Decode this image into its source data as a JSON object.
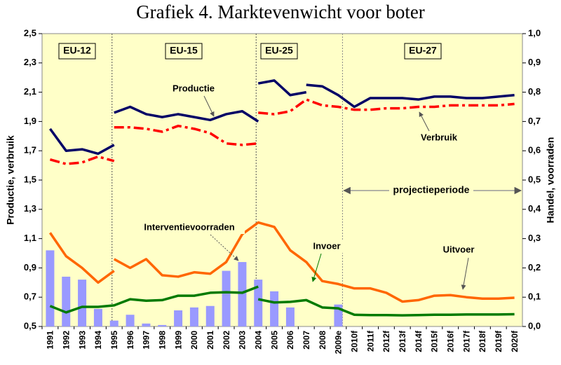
{
  "chart_data": {
    "type": "line",
    "title": "Grafiek 4. Marktevenwicht voor boter",
    "ylabel": "Productie, verbruik",
    "y2label": "Handel, voorraden",
    "categories": [
      "1991",
      "1992",
      "1993",
      "1994",
      "1995",
      "1996",
      "1997",
      "1998",
      "1999",
      "2000",
      "2001",
      "2002",
      "2003",
      "2004",
      "2005",
      "2006",
      "2007",
      "2008",
      "2009e",
      "2010f",
      "2011f",
      "2012f",
      "2013f",
      "2014f",
      "2015f",
      "2016f",
      "2017f",
      "2018f",
      "2019f",
      "2020f"
    ],
    "ylim": [
      0.5,
      2.5
    ],
    "yticks": [
      {
        "value": 0.5,
        "label": "0,5"
      },
      {
        "value": 0.7,
        "label": "0,7"
      },
      {
        "value": 0.9,
        "label": "0,9"
      },
      {
        "value": 1.1,
        "label": "1,1"
      },
      {
        "value": 1.3,
        "label": "1,3"
      },
      {
        "value": 1.5,
        "label": "1,5"
      },
      {
        "value": 1.7,
        "label": "1,7"
      },
      {
        "value": 1.9,
        "label": "1,9"
      },
      {
        "value": 2.1,
        "label": "2,1"
      },
      {
        "value": 2.3,
        "label": "2,3"
      },
      {
        "value": 2.5,
        "label": "2,5"
      }
    ],
    "y2lim": [
      0,
      1
    ],
    "y2ticks": [
      {
        "value": 0,
        "label": "0,0"
      },
      {
        "value": 0.1,
        "label": "0,1"
      },
      {
        "value": 0.2,
        "label": "0,2"
      },
      {
        "value": 0.3,
        "label": "0,3"
      },
      {
        "value": 0.4,
        "label": "0,4"
      },
      {
        "value": 0.5,
        "label": "0,5"
      },
      {
        "value": 0.6,
        "label": "0,6"
      },
      {
        "value": 0.7,
        "label": "0,7"
      },
      {
        "value": 0.8,
        "label": "0,8"
      },
      {
        "value": 0.9,
        "label": "0,9"
      },
      {
        "value": 1,
        "label": "1,0"
      }
    ],
    "periods": [
      "EU-12",
      "EU-15",
      "EU-25",
      "EU-27"
    ],
    "projection_label": "projectieperiode",
    "series": [
      {
        "name": "Productie",
        "type": "line",
        "color": "#000066",
        "axis": "y",
        "dash": "solid",
        "segments": [
          [
            1.85,
            1.7,
            1.71,
            1.68,
            1.74,
            null,
            null,
            null,
            null,
            null,
            null,
            null,
            null,
            null,
            null,
            null,
            null,
            null,
            null,
            null,
            null,
            null,
            null,
            null,
            null,
            null,
            null,
            null,
            null,
            null
          ],
          [
            null,
            null,
            null,
            null,
            1.96,
            2.0,
            1.95,
            1.93,
            1.95,
            1.93,
            1.91,
            1.95,
            1.97,
            1.9,
            null,
            null,
            null,
            null,
            null,
            null,
            null,
            null,
            null,
            null,
            null,
            null,
            null,
            null,
            null,
            null
          ],
          [
            null,
            null,
            null,
            null,
            null,
            null,
            null,
            null,
            null,
            null,
            null,
            null,
            null,
            2.16,
            2.18,
            2.08,
            2.1,
            null,
            null,
            null,
            null,
            null,
            null,
            null,
            null,
            null,
            null,
            null,
            null,
            null
          ],
          [
            null,
            null,
            null,
            null,
            null,
            null,
            null,
            null,
            null,
            null,
            null,
            null,
            null,
            null,
            null,
            null,
            2.15,
            2.14,
            2.08,
            2.0,
            2.06,
            2.06,
            2.06,
            2.05,
            2.07,
            2.07,
            2.06,
            2.06,
            2.07,
            2.08
          ]
        ]
      },
      {
        "name": "Verbruik",
        "type": "line",
        "color": "#ff0000",
        "axis": "y",
        "dash": "dashdot",
        "segments": [
          [
            1.64,
            1.61,
            1.62,
            1.66,
            1.63,
            null,
            null,
            null,
            null,
            null,
            null,
            null,
            null,
            null,
            null,
            null,
            null,
            null,
            null,
            null,
            null,
            null,
            null,
            null,
            null,
            null,
            null,
            null,
            null,
            null
          ],
          [
            null,
            null,
            null,
            null,
            1.86,
            1.86,
            1.85,
            1.83,
            1.87,
            1.85,
            1.82,
            1.75,
            1.74,
            1.75,
            null,
            null,
            null,
            null,
            null,
            null,
            null,
            null,
            null,
            null,
            null,
            null,
            null,
            null,
            null,
            null
          ],
          [
            null,
            null,
            null,
            null,
            null,
            null,
            null,
            null,
            null,
            null,
            null,
            null,
            null,
            1.96,
            1.95,
            1.97,
            2.05,
            2.01,
            2.0,
            1.98,
            1.98,
            1.99,
            1.99,
            2.0,
            2.0,
            2.01,
            2.01,
            2.01,
            2.01,
            2.02
          ]
        ]
      },
      {
        "name": "Interventievoorraden",
        "type": "bar",
        "color": "#9999ff",
        "axis": "y2",
        "values": [
          0.26,
          0.17,
          0.16,
          0.06,
          0.02,
          0.04,
          0.01,
          0.005,
          0.055,
          0.065,
          0.07,
          0.19,
          0.22,
          0.16,
          0.12,
          0.065,
          null,
          null,
          0.075,
          null,
          null,
          null,
          null,
          null,
          null,
          null,
          null,
          null,
          null,
          null
        ]
      },
      {
        "name": "Invoer",
        "type": "line",
        "color": "#007a00",
        "axis": "y2",
        "dash": "solid",
        "segments": [
          [
            0.07,
            0.048,
            0.067,
            0.067,
            0.072,
            0.093,
            0.088,
            0.09,
            0.105,
            0.105,
            0.115,
            0.117,
            0.115,
            0.136,
            null,
            null,
            null,
            null,
            null,
            null,
            null,
            null,
            null,
            null,
            null,
            null,
            null,
            null,
            null,
            null
          ],
          [
            null,
            null,
            null,
            null,
            null,
            null,
            null,
            null,
            null,
            null,
            null,
            null,
            null,
            0.093,
            0.082,
            0.084,
            0.09,
            0.065,
            0.062,
            0.04,
            0.039,
            0.039,
            0.038,
            0.039,
            0.04,
            0.04,
            0.041,
            0.041,
            0.041,
            0.042
          ]
        ]
      },
      {
        "name": "Uitvoer",
        "type": "line",
        "color": "#ff6600",
        "axis": "y2",
        "dash": "solid",
        "segments": [
          [
            0.32,
            0.24,
            0.2,
            0.15,
            0.19,
            null,
            null,
            null,
            null,
            null,
            null,
            null,
            null,
            null,
            null,
            null,
            null,
            null,
            null,
            null,
            null,
            null,
            null,
            null,
            null,
            null,
            null,
            null,
            null,
            null
          ],
          [
            null,
            null,
            null,
            null,
            0.23,
            0.2,
            0.23,
            0.175,
            0.17,
            0.185,
            0.18,
            0.22,
            0.315,
            0.355,
            0.34,
            0.26,
            0.22,
            0.155,
            0.145,
            0.13,
            0.13,
            0.115,
            0.085,
            0.09,
            0.105,
            0.107,
            0.1,
            0.095,
            0.095,
            0.098
          ]
        ]
      }
    ]
  }
}
